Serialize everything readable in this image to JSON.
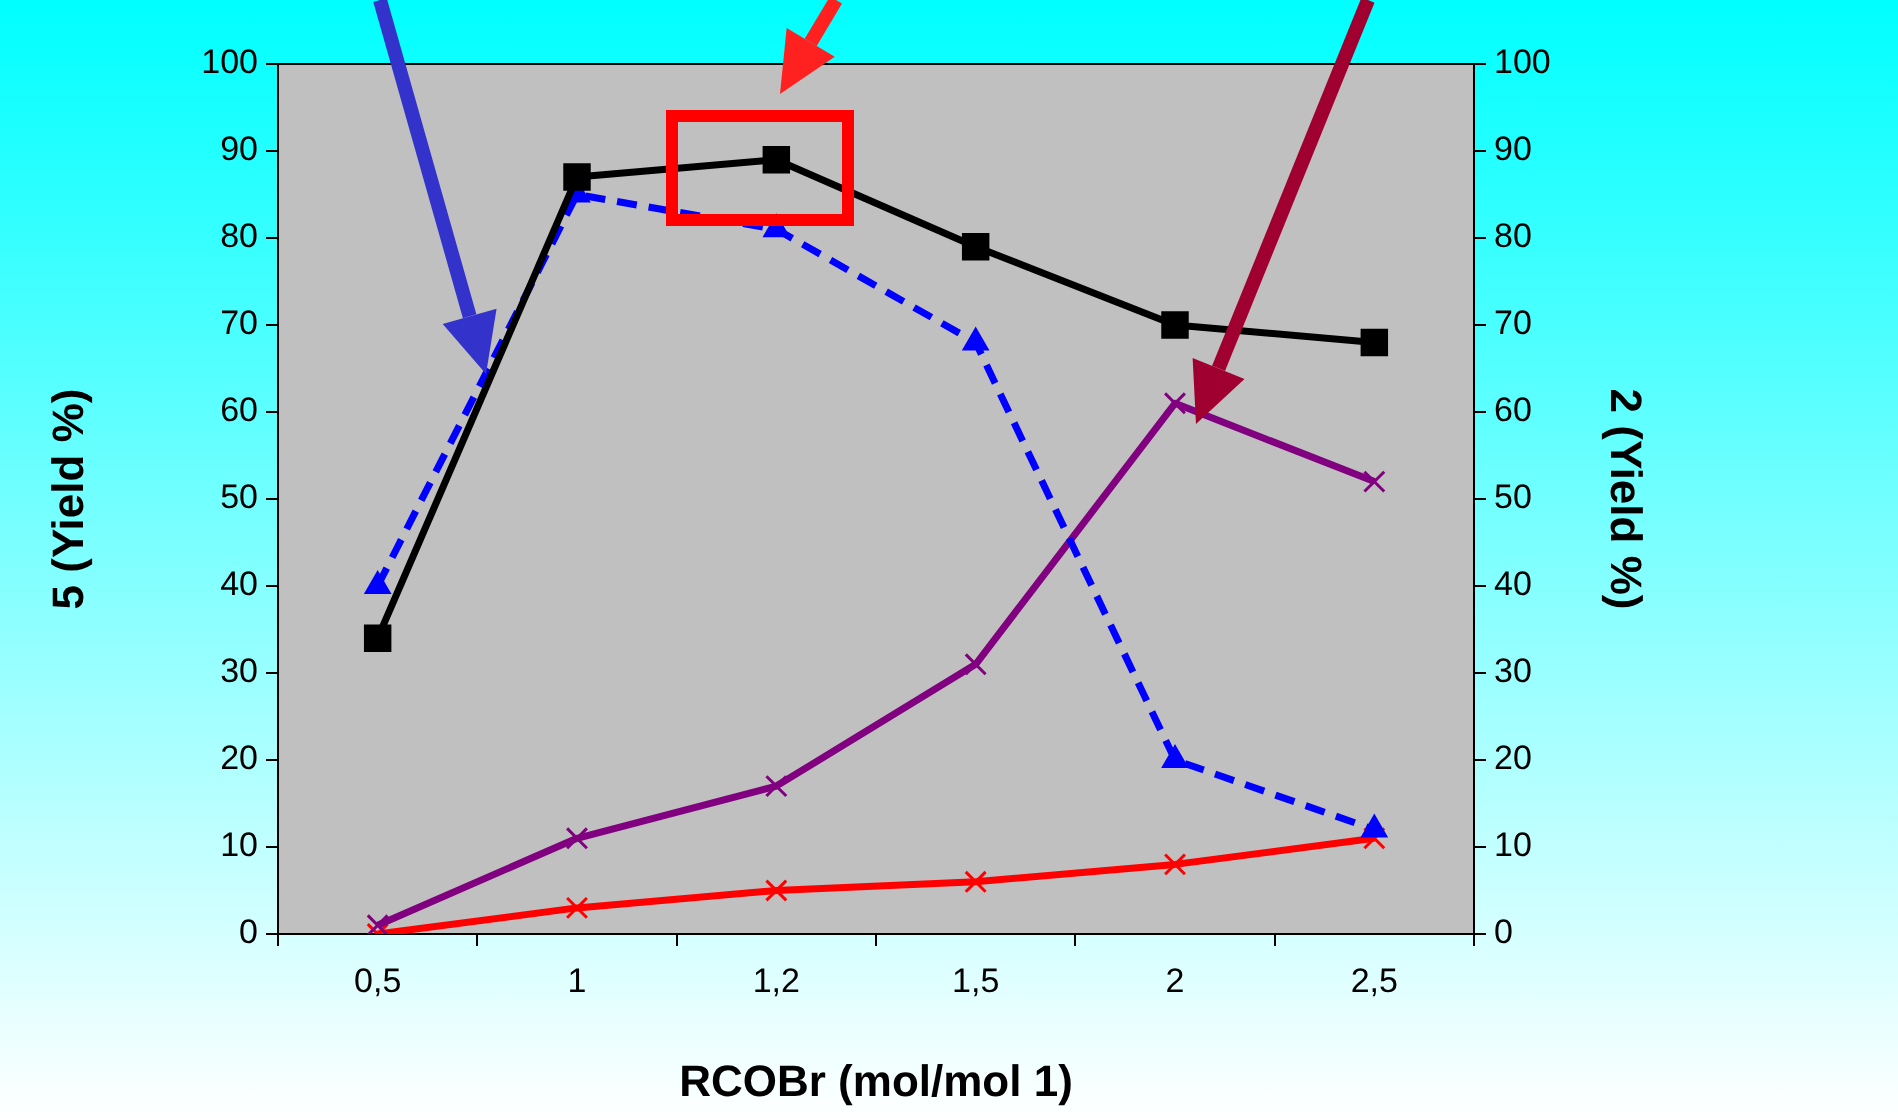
{
  "chart_data": {
    "type": "line",
    "xlabel": "RCOBr (mol/mol 1)",
    "ylabel": "5 (Yield %)",
    "y2label": "2 (Yield %)",
    "categories": [
      "0,5",
      "1",
      "1,2",
      "1,5",
      "2",
      "2,5"
    ],
    "ylim": [
      0,
      100
    ],
    "yticks": [
      0,
      10,
      20,
      30,
      40,
      50,
      60,
      70,
      80,
      90,
      100
    ],
    "y2lim": [
      0,
      100
    ],
    "y2ticks": [
      0,
      10,
      20,
      30,
      40,
      50,
      60,
      70,
      80,
      90,
      100
    ],
    "legend": false,
    "series": [
      {
        "color": "#000000",
        "marker": "square",
        "line_style": "solid",
        "values": [
          34,
          87,
          89,
          79,
          70,
          68
        ]
      },
      {
        "color": "#0000ff",
        "marker": "triangle",
        "line_style": "dashed",
        "values": [
          40,
          85,
          81,
          68,
          20,
          12
        ]
      },
      {
        "color": "#800080",
        "marker": "cross",
        "line_style": "solid",
        "values": [
          1,
          11,
          17,
          31,
          61,
          52
        ]
      },
      {
        "color": "#ff0000",
        "marker": "cross",
        "line_style": "solid",
        "values": [
          0,
          3,
          5,
          6,
          8,
          11
        ]
      }
    ]
  }
}
